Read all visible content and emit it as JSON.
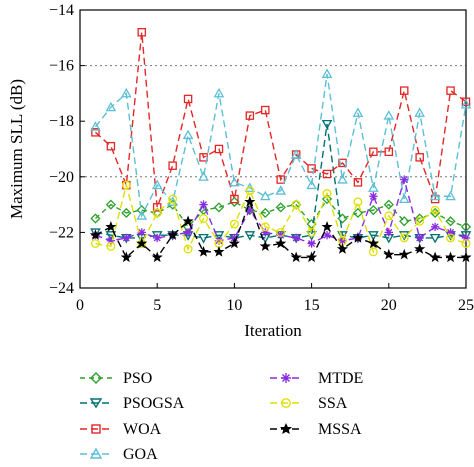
{
  "chart_data": {
    "type": "line",
    "title": "",
    "xlabel": "Iteration",
    "ylabel": "Maximum SLL (dB)",
    "xlim": [
      0,
      25
    ],
    "ylim": [
      -24,
      -14
    ],
    "xticks": [
      0,
      5,
      10,
      15,
      20,
      25
    ],
    "xtick_labels": [
      "0",
      "5",
      "10",
      "15",
      "20",
      "25"
    ],
    "yticks": [
      -24,
      -22,
      -20,
      -18,
      -16,
      -14
    ],
    "ytick_labels": [
      "−24",
      "−22",
      "−20",
      "−18",
      "−16",
      "−14"
    ],
    "grid": "horizontal dashed at -16 and -20",
    "legend_position": "below",
    "x": [
      1,
      2,
      3,
      4,
      5,
      6,
      7,
      8,
      9,
      10,
      11,
      12,
      13,
      14,
      15,
      16,
      17,
      18,
      19,
      20,
      21,
      22,
      23,
      24,
      25
    ],
    "series": [
      {
        "name": "PSO",
        "color": "#2ca02c",
        "marker": "diamond",
        "dash": "5,4",
        "values": [
          -21.5,
          -21.0,
          -21.3,
          -21.2,
          -21.3,
          -21.0,
          -21.8,
          -21.2,
          -21.1,
          -20.9,
          -21.2,
          -21.3,
          -21.1,
          -21.0,
          -21.7,
          -20.8,
          -21.5,
          -21.3,
          -21.2,
          -21.0,
          -21.6,
          -21.5,
          -21.3,
          -21.6,
          -21.8
        ]
      },
      {
        "name": "PSOGSA",
        "color": "#007070",
        "marker": "triangle-down",
        "dash": "7,4",
        "values": [
          -22.0,
          -22.1,
          -22.2,
          -22.2,
          -22.1,
          -22.1,
          -22.1,
          -22.2,
          -22.1,
          -22.2,
          -22.1,
          -22.2,
          -22.1,
          -22.2,
          -22.1,
          -18.1,
          -22.1,
          -22.2,
          -22.1,
          -22.2,
          -22.1,
          -22.2,
          -22.2,
          -22.1,
          -22.1
        ]
      },
      {
        "name": "WOA",
        "color": "#e32626",
        "marker": "square",
        "dash": "7,4",
        "values": [
          -18.4,
          -18.9,
          -20.3,
          -14.8,
          -21.1,
          -19.6,
          -17.2,
          -19.3,
          -19.0,
          -20.8,
          -17.8,
          -17.6,
          -20.1,
          -19.2,
          -19.7,
          -19.9,
          -19.5,
          -20.2,
          -19.1,
          -19.1,
          -16.9,
          -19.3,
          -20.8,
          -16.9,
          -17.3
        ]
      },
      {
        "name": "GOA",
        "color": "#5bbfd6",
        "marker": "triangle-up",
        "dash": "7,4",
        "values": [
          -18.2,
          -17.5,
          -17.0,
          -21.4,
          -20.3,
          -20.9,
          -18.5,
          -20.0,
          -17.0,
          -20.2,
          -20.4,
          -20.7,
          -20.5,
          -19.2,
          -20.3,
          -16.3,
          -20.1,
          -17.7,
          -20.4,
          -17.8,
          -20.8,
          -17.7,
          -20.7,
          -20.7,
          -17.4
        ]
      },
      {
        "name": "MTDE",
        "color": "#8a2be2",
        "marker": "asterisk",
        "dash": "7,4",
        "values": [
          -22.1,
          -22.3,
          -22.2,
          -22.0,
          -22.2,
          -22.1,
          -22.0,
          -21.0,
          -22.3,
          -22.2,
          -21.2,
          -22.0,
          -22.1,
          -22.2,
          -22.4,
          -22.1,
          -22.3,
          -22.2,
          -20.7,
          -22.0,
          -20.1,
          -22.2,
          -21.8,
          -22.0,
          -22.2
        ]
      },
      {
        "name": "SSA",
        "color": "#e0e000",
        "marker": "circle",
        "dash": "7,4",
        "values": [
          -22.4,
          -22.5,
          -20.3,
          -22.4,
          -21.3,
          -20.8,
          -22.6,
          -21.5,
          -22.4,
          -21.7,
          -20.5,
          -21.8,
          -22.0,
          -21.0,
          -22.0,
          -20.6,
          -22.3,
          -20.9,
          -22.7,
          -21.4,
          -22.2,
          -21.6,
          -21.2,
          -22.2,
          -22.4
        ]
      },
      {
        "name": "MSSA",
        "color": "#000000",
        "marker": "star",
        "dash": "7,4",
        "values": [
          -22.1,
          -21.8,
          -22.9,
          -22.4,
          -22.9,
          -22.1,
          -21.6,
          -22.7,
          -22.7,
          -22.4,
          -20.9,
          -22.5,
          -22.4,
          -22.9,
          -22.9,
          -21.8,
          -22.6,
          -22.2,
          -22.4,
          -22.8,
          -22.8,
          -22.6,
          -22.9,
          -22.9,
          -22.9
        ]
      }
    ]
  }
}
